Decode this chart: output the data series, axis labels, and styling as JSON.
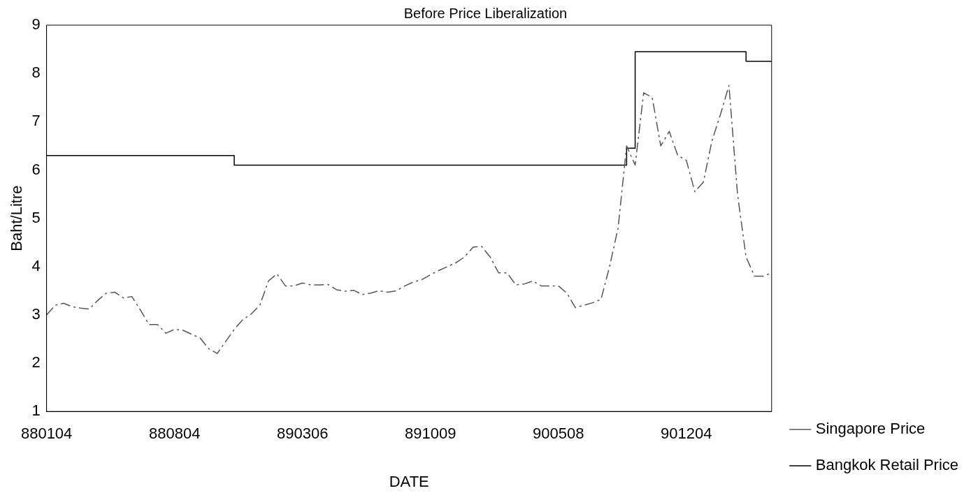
{
  "chart_data": {
    "type": "line",
    "title": "Before Price Liberalization",
    "xlabel": "DATE",
    "ylabel": "Baht/Litre",
    "categories": [
      "880104",
      null,
      null,
      null,
      null,
      null,
      null,
      null,
      null,
      null,
      null,
      null,
      null,
      null,
      null,
      "880804",
      null,
      null,
      null,
      null,
      null,
      null,
      null,
      null,
      null,
      null,
      null,
      null,
      null,
      null,
      "890306",
      null,
      null,
      null,
      null,
      null,
      null,
      null,
      null,
      null,
      null,
      null,
      null,
      null,
      null,
      "891009",
      null,
      null,
      null,
      null,
      null,
      null,
      null,
      null,
      null,
      null,
      null,
      null,
      null,
      null,
      "900508",
      null,
      null,
      null,
      null,
      null,
      null,
      null,
      null,
      null,
      null,
      null,
      null,
      null,
      null,
      "901204",
      null,
      null,
      null,
      null,
      null,
      null,
      null,
      null,
      null,
      null
    ],
    "series": [
      {
        "name": "Singapore Price",
        "color": "#555555",
        "line_style": "dashed",
        "values": [
          3.0,
          3.2,
          3.24,
          3.17,
          3.14,
          3.12,
          3.3,
          3.45,
          3.47,
          3.35,
          3.38,
          3.1,
          2.8,
          2.8,
          2.62,
          2.7,
          2.68,
          2.6,
          2.52,
          2.3,
          2.2,
          2.45,
          2.7,
          2.9,
          3.02,
          3.2,
          3.7,
          3.85,
          3.6,
          3.6,
          3.66,
          3.62,
          3.62,
          3.63,
          3.52,
          3.49,
          3.51,
          3.42,
          3.45,
          3.5,
          3.47,
          3.5,
          3.6,
          3.68,
          3.73,
          3.83,
          3.92,
          4.0,
          4.08,
          4.2,
          4.4,
          4.42,
          4.2,
          3.87,
          3.87,
          3.62,
          3.64,
          3.7,
          3.6,
          3.6,
          3.6,
          3.45,
          3.15,
          3.2,
          3.25,
          3.32,
          4.0,
          4.8,
          6.5,
          6.1,
          7.6,
          7.5,
          6.5,
          6.8,
          6.3,
          6.2,
          5.55,
          5.75,
          6.6,
          7.15,
          7.75,
          5.5,
          4.2,
          3.8,
          3.8,
          3.87
        ]
      },
      {
        "name": "Bangkok Retail Price",
        "type": "step",
        "color": "#000000",
        "line_style": "solid",
        "values": [
          6.3,
          6.3,
          6.3,
          6.3,
          6.3,
          6.3,
          6.3,
          6.3,
          6.3,
          6.3,
          6.3,
          6.3,
          6.3,
          6.3,
          6.3,
          6.3,
          6.3,
          6.3,
          6.3,
          6.3,
          6.3,
          6.3,
          6.3,
          6.1,
          6.1,
          6.1,
          6.1,
          6.1,
          6.1,
          6.1,
          6.1,
          6.1,
          6.1,
          6.1,
          6.1,
          6.1,
          6.1,
          6.1,
          6.1,
          6.1,
          6.1,
          6.1,
          6.1,
          6.1,
          6.1,
          6.1,
          6.1,
          6.1,
          6.1,
          6.1,
          6.1,
          6.1,
          6.1,
          6.1,
          6.1,
          6.1,
          6.1,
          6.1,
          6.1,
          6.1,
          6.1,
          6.1,
          6.1,
          6.1,
          6.1,
          6.1,
          6.1,
          6.1,
          6.1,
          6.45,
          8.45,
          8.45,
          8.45,
          8.45,
          8.45,
          8.45,
          8.45,
          8.45,
          8.45,
          8.45,
          8.45,
          8.45,
          8.45,
          8.25,
          8.25,
          8.25
        ]
      }
    ],
    "ylim": [
      1,
      9
    ],
    "yticks": [
      1,
      2,
      3,
      4,
      5,
      6,
      7,
      8,
      9
    ],
    "legend": "right",
    "marker": "none"
  }
}
